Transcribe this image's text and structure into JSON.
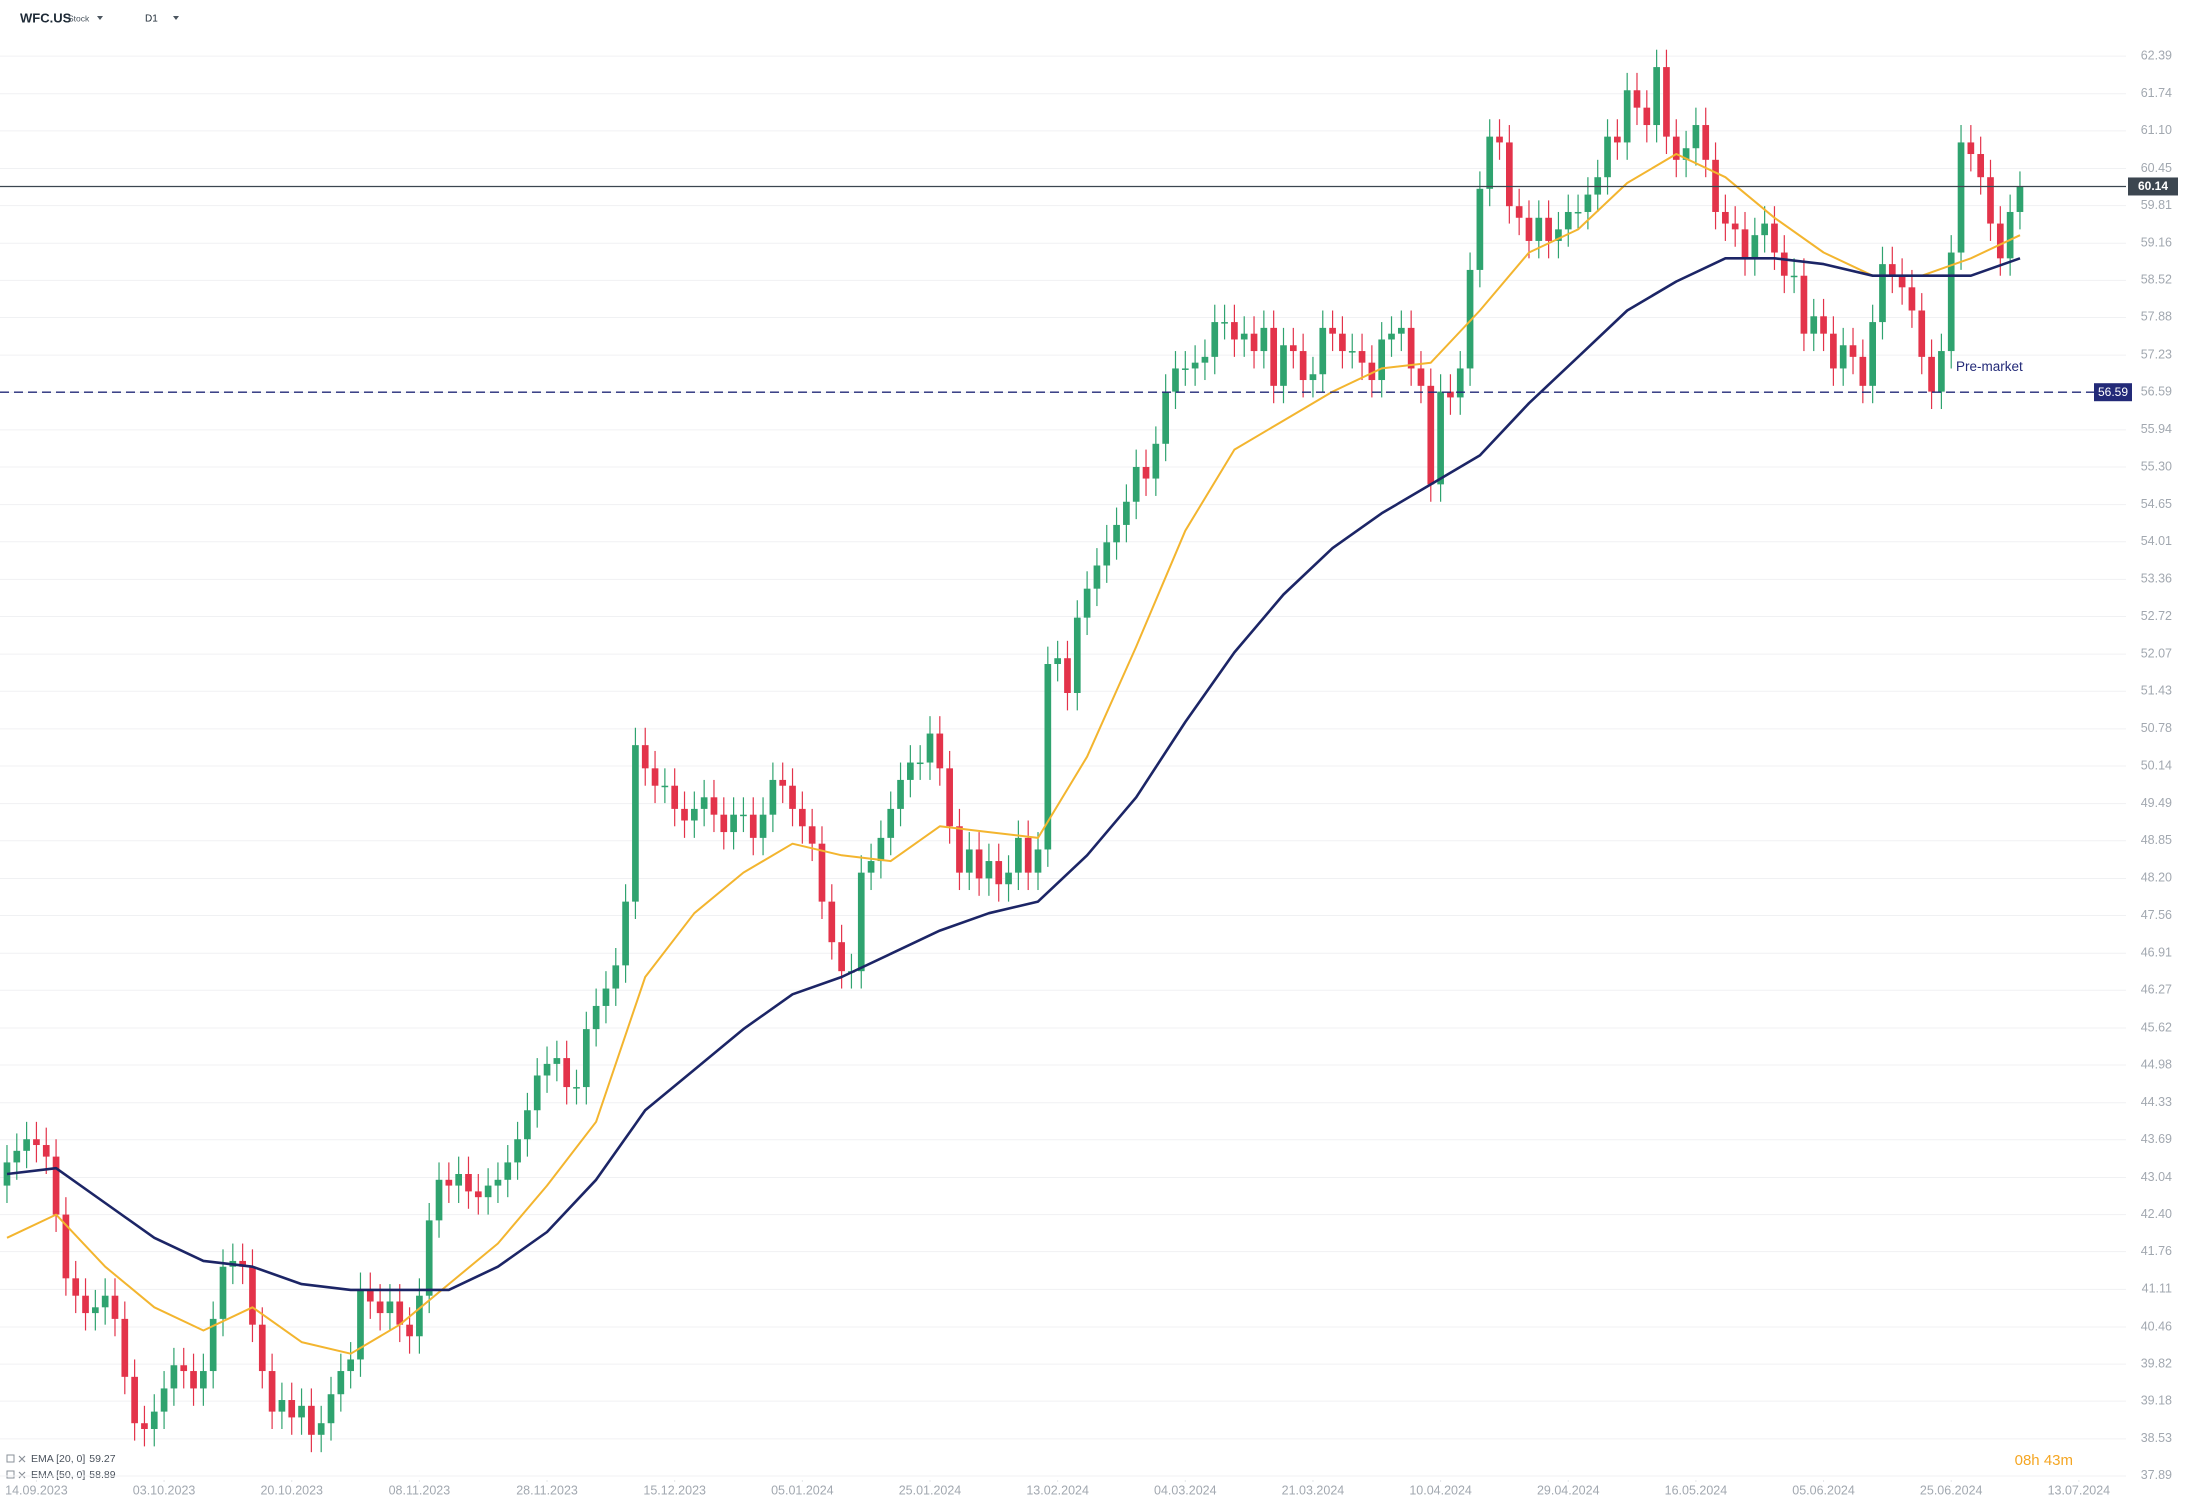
{
  "header": {
    "symbol": "WFC.US",
    "asset_type": "Stock",
    "interval": "D1"
  },
  "chart_data": {
    "type": "candlestick",
    "open": [
      42.9,
      43.3,
      43.5,
      43.7,
      43.6,
      43.4,
      42.4,
      41.3,
      41.0,
      40.7,
      40.8,
      41.0,
      40.6,
      39.6,
      38.8,
      38.7,
      39.0,
      39.4,
      39.8,
      39.7,
      39.4,
      39.7,
      40.6,
      41.5,
      41.6,
      41.5,
      40.5,
      39.7,
      39.0,
      39.2,
      38.9,
      39.1,
      38.6,
      38.8,
      39.3,
      39.7,
      39.9,
      41.1,
      40.9,
      40.7,
      40.9,
      40.5,
      40.3,
      41.0,
      42.3,
      43.0,
      42.9,
      43.1,
      42.8,
      42.7,
      42.9,
      43.0,
      43.3,
      43.7,
      44.2,
      44.8,
      45.0,
      45.1,
      44.6,
      44.6,
      45.6,
      46.0,
      46.3,
      46.7,
      47.8,
      50.5,
      50.1,
      49.8,
      49.8,
      49.4,
      49.2,
      49.4,
      49.6,
      49.3,
      49.0,
      49.3,
      49.3,
      48.9,
      49.3,
      49.9,
      49.8,
      49.4,
      49.1,
      48.8,
      47.8,
      47.1,
      46.6,
      46.6,
      48.3,
      48.5,
      48.9,
      49.4,
      49.9,
      50.2,
      50.2,
      50.7,
      50.1,
      49.1,
      48.3,
      48.7,
      48.2,
      48.5,
      48.1,
      48.3,
      48.9,
      48.3,
      48.7,
      51.9,
      52.0,
      51.4,
      52.7,
      53.2,
      53.6,
      54.0,
      54.3,
      54.7,
      55.3,
      55.1,
      55.7,
      56.6,
      57.0,
      57.0,
      57.1,
      57.2,
      57.8,
      57.8,
      57.5,
      57.6,
      57.3,
      57.7,
      56.7,
      57.4,
      57.3,
      56.8,
      56.9,
      57.7,
      57.6,
      57.3,
      57.3,
      57.1,
      56.8,
      57.5,
      57.6,
      57.7,
      57.0,
      56.7,
      55.0,
      56.6,
      56.5,
      57.0,
      58.7,
      60.1,
      61.0,
      60.9,
      59.8,
      59.6,
      59.2,
      59.6,
      59.2,
      59.4,
      59.7,
      59.7,
      60.0,
      60.3,
      61.0,
      60.9,
      61.8,
      61.5,
      61.2,
      62.2,
      61.0,
      60.6,
      60.8,
      61.2,
      60.6,
      59.7,
      59.5,
      59.4,
      58.9,
      59.3,
      59.5,
      59.0,
      58.6,
      58.6,
      57.6,
      57.9,
      57.6,
      57.0,
      57.4,
      57.2,
      56.7,
      57.8,
      58.8,
      58.6,
      58.4,
      58.0,
      57.2,
      56.6,
      57.3,
      59.0,
      60.9,
      60.7,
      60.3,
      59.5,
      58.9,
      59.7
    ],
    "high": [
      43.6,
      43.8,
      44.0,
      44.0,
      43.9,
      43.7,
      42.7,
      41.6,
      41.3,
      41.1,
      41.3,
      41.3,
      40.9,
      39.9,
      39.1,
      39.3,
      39.7,
      40.1,
      40.1,
      40.0,
      40.0,
      40.9,
      41.8,
      41.9,
      41.9,
      41.8,
      40.8,
      40.0,
      39.5,
      39.5,
      39.4,
      39.4,
      39.1,
      39.6,
      40.0,
      40.2,
      41.4,
      41.4,
      41.2,
      41.2,
      41.2,
      40.8,
      41.3,
      42.6,
      43.3,
      43.3,
      43.4,
      43.4,
      43.1,
      43.2,
      43.3,
      43.6,
      44.0,
      44.5,
      45.1,
      45.3,
      45.4,
      45.4,
      44.9,
      45.9,
      46.3,
      46.6,
      47.0,
      48.1,
      50.8,
      50.8,
      50.4,
      50.1,
      50.1,
      49.7,
      49.7,
      49.9,
      49.9,
      49.6,
      49.6,
      49.6,
      49.6,
      49.6,
      50.2,
      50.2,
      50.1,
      49.7,
      49.4,
      49.1,
      48.1,
      47.4,
      46.9,
      48.6,
      48.8,
      49.2,
      49.7,
      50.2,
      50.5,
      50.5,
      51.0,
      51.0,
      50.4,
      49.4,
      49.0,
      49.0,
      48.8,
      48.8,
      48.6,
      49.2,
      49.2,
      49.0,
      52.2,
      52.3,
      52.3,
      53.0,
      53.5,
      53.9,
      54.3,
      54.6,
      55.0,
      55.6,
      55.6,
      56.0,
      56.9,
      57.3,
      57.3,
      57.4,
      57.5,
      58.1,
      58.1,
      58.1,
      57.9,
      57.9,
      58.0,
      58.0,
      57.7,
      57.7,
      57.6,
      57.2,
      58.0,
      58.0,
      57.9,
      57.6,
      57.6,
      57.4,
      57.8,
      57.9,
      58.0,
      58.0,
      57.3,
      57.0,
      56.9,
      56.9,
      57.3,
      59.0,
      60.4,
      61.3,
      61.3,
      61.2,
      60.1,
      59.9,
      59.9,
      59.9,
      59.7,
      60.0,
      60.0,
      60.3,
      60.6,
      61.3,
      61.3,
      62.1,
      62.1,
      61.8,
      62.5,
      62.5,
      61.3,
      61.1,
      61.5,
      61.5,
      60.9,
      60.0,
      59.8,
      59.7,
      59.6,
      59.8,
      59.8,
      59.3,
      58.9,
      58.9,
      58.2,
      58.2,
      57.9,
      57.7,
      57.7,
      57.5,
      58.1,
      59.1,
      59.1,
      58.9,
      58.7,
      58.3,
      57.5,
      57.6,
      59.3,
      61.2,
      61.2,
      61.0,
      60.6,
      59.8,
      60.0,
      60.4
    ],
    "low": [
      42.6,
      43.0,
      43.2,
      43.3,
      43.1,
      42.1,
      41.0,
      40.7,
      40.4,
      40.4,
      40.5,
      40.3,
      39.3,
      38.5,
      38.4,
      38.4,
      38.7,
      39.1,
      39.4,
      39.1,
      39.1,
      39.4,
      40.3,
      41.2,
      41.2,
      40.2,
      39.4,
      38.7,
      38.7,
      38.6,
      38.6,
      38.3,
      38.3,
      38.5,
      39.0,
      39.4,
      39.6,
      40.6,
      40.4,
      40.4,
      40.2,
      40.0,
      40.0,
      40.7,
      42.0,
      42.6,
      42.6,
      42.5,
      42.4,
      42.4,
      42.6,
      42.7,
      43.0,
      43.4,
      43.9,
      44.5,
      44.7,
      44.3,
      44.3,
      44.3,
      45.3,
      45.7,
      46.0,
      46.4,
      47.5,
      49.8,
      49.5,
      49.5,
      49.1,
      48.9,
      48.9,
      49.1,
      49.0,
      48.7,
      48.7,
      49.0,
      48.6,
      48.6,
      49.0,
      49.5,
      49.1,
      48.8,
      48.5,
      47.5,
      46.8,
      46.3,
      46.3,
      46.3,
      48.0,
      48.2,
      48.6,
      49.1,
      49.6,
      49.9,
      49.9,
      49.8,
      48.8,
      48.0,
      48.0,
      47.9,
      47.9,
      47.8,
      47.8,
      48.0,
      48.0,
      48.0,
      48.4,
      51.6,
      51.1,
      51.1,
      52.4,
      52.9,
      53.3,
      53.7,
      54.0,
      54.4,
      54.8,
      54.8,
      55.4,
      56.3,
      56.7,
      56.7,
      56.8,
      56.9,
      57.5,
      57.2,
      57.2,
      57.0,
      57.0,
      56.4,
      56.4,
      57.0,
      56.5,
      56.5,
      56.6,
      57.3,
      57.0,
      57.0,
      56.8,
      56.5,
      56.5,
      57.2,
      57.3,
      56.7,
      56.4,
      54.7,
      54.7,
      56.2,
      56.2,
      56.7,
      58.4,
      59.8,
      60.6,
      59.5,
      59.3,
      58.9,
      58.9,
      58.9,
      58.9,
      59.1,
      59.4,
      59.4,
      59.7,
      60.0,
      60.6,
      60.6,
      61.2,
      60.9,
      60.9,
      60.7,
      60.3,
      60.3,
      60.5,
      60.3,
      59.4,
      59.2,
      59.1,
      58.6,
      58.6,
      59.0,
      58.7,
      58.3,
      58.3,
      57.3,
      57.3,
      57.3,
      56.7,
      56.7,
      56.9,
      56.4,
      56.4,
      57.5,
      58.3,
      58.1,
      57.7,
      56.9,
      56.3,
      56.3,
      57.0,
      58.7,
      60.4,
      60.0,
      59.2,
      58.6,
      58.6,
      59.4
    ],
    "close": [
      43.3,
      43.5,
      43.7,
      43.6,
      43.4,
      42.4,
      41.3,
      41.0,
      40.7,
      40.8,
      41.0,
      40.6,
      39.6,
      38.8,
      38.7,
      39.0,
      39.4,
      39.8,
      39.7,
      39.4,
      39.7,
      40.6,
      41.5,
      41.6,
      41.5,
      40.5,
      39.7,
      39.0,
      39.2,
      38.9,
      39.1,
      38.6,
      38.8,
      39.3,
      39.7,
      39.9,
      41.1,
      40.9,
      40.7,
      40.9,
      40.5,
      40.3,
      41.0,
      42.3,
      43.0,
      42.9,
      43.1,
      42.8,
      42.7,
      42.9,
      43.0,
      43.3,
      43.7,
      44.2,
      44.8,
      45.0,
      45.1,
      44.6,
      44.6,
      45.6,
      46.0,
      46.3,
      46.7,
      47.8,
      50.5,
      50.1,
      49.8,
      49.8,
      49.4,
      49.2,
      49.4,
      49.6,
      49.3,
      49.0,
      49.3,
      49.3,
      48.9,
      49.3,
      49.9,
      49.8,
      49.4,
      49.1,
      48.8,
      47.8,
      47.1,
      46.6,
      46.6,
      48.3,
      48.5,
      48.9,
      49.4,
      49.9,
      50.2,
      50.2,
      50.7,
      50.1,
      49.1,
      48.3,
      48.7,
      48.2,
      48.5,
      48.1,
      48.3,
      48.9,
      48.3,
      48.7,
      51.9,
      52.0,
      51.4,
      52.7,
      53.2,
      53.6,
      54.0,
      54.3,
      54.7,
      55.3,
      55.1,
      55.7,
      56.6,
      57.0,
      57.0,
      57.1,
      57.2,
      57.8,
      57.8,
      57.5,
      57.6,
      57.3,
      57.7,
      56.7,
      57.4,
      57.3,
      56.8,
      56.9,
      57.7,
      57.6,
      57.3,
      57.3,
      57.1,
      56.8,
      57.5,
      57.6,
      57.7,
      57.0,
      56.7,
      55.0,
      56.6,
      56.5,
      57.0,
      58.7,
      60.1,
      61.0,
      60.9,
      59.8,
      59.6,
      59.2,
      59.6,
      59.2,
      59.4,
      59.7,
      59.7,
      60.0,
      60.3,
      61.0,
      60.9,
      61.8,
      61.5,
      61.2,
      62.2,
      61.0,
      60.6,
      60.8,
      61.2,
      60.6,
      59.7,
      59.5,
      59.4,
      58.9,
      59.3,
      59.5,
      59.0,
      58.6,
      58.6,
      57.6,
      57.9,
      57.6,
      57.0,
      57.4,
      57.2,
      56.7,
      57.8,
      58.8,
      58.6,
      58.4,
      58.0,
      57.2,
      56.6,
      57.3,
      59.0,
      60.9,
      60.7,
      60.3,
      59.5,
      58.9,
      59.7,
      60.14
    ],
    "up_color": "#2fa36f",
    "down_color": "#e3334a",
    "series": [
      {
        "name": "EMA [20, 0]",
        "last_value": 59.27,
        "color": "#f3b52f",
        "x": [
          0,
          5,
          10,
          15,
          20,
          25,
          30,
          35,
          40,
          45,
          50,
          55,
          60,
          65,
          70,
          75,
          80,
          85,
          90,
          95,
          100,
          105,
          110,
          115,
          120,
          125,
          130,
          135,
          140,
          145,
          150,
          155,
          160,
          165,
          170,
          175,
          180,
          185,
          190,
          195,
          200,
          205
        ],
        "values": [
          42.0,
          42.4,
          41.5,
          40.8,
          40.4,
          40.8,
          40.2,
          40.0,
          40.5,
          41.2,
          41.9,
          42.9,
          44.0,
          46.5,
          47.6,
          48.3,
          48.8,
          48.6,
          48.5,
          49.1,
          49.0,
          48.9,
          50.3,
          52.2,
          54.2,
          55.6,
          56.1,
          56.6,
          57.0,
          57.1,
          58.0,
          59.0,
          59.4,
          60.2,
          60.7,
          60.3,
          59.6,
          59.0,
          58.6,
          58.6,
          58.9,
          59.3
        ]
      },
      {
        "name": "EMA [50, 0]",
        "last_value": 58.89,
        "color": "#1c2566",
        "x": [
          0,
          5,
          10,
          15,
          20,
          25,
          30,
          35,
          40,
          45,
          50,
          55,
          60,
          65,
          70,
          75,
          80,
          85,
          90,
          95,
          100,
          105,
          110,
          115,
          120,
          125,
          130,
          135,
          140,
          145,
          150,
          155,
          160,
          165,
          170,
          175,
          180,
          185,
          190,
          195,
          200,
          205
        ],
        "values": [
          43.1,
          43.2,
          42.6,
          42.0,
          41.6,
          41.5,
          41.2,
          41.1,
          41.1,
          41.1,
          41.5,
          42.1,
          43.0,
          44.2,
          44.9,
          45.6,
          46.2,
          46.5,
          46.9,
          47.3,
          47.6,
          47.8,
          48.6,
          49.6,
          50.9,
          52.1,
          53.1,
          53.9,
          54.5,
          55.0,
          55.5,
          56.4,
          57.2,
          58.0,
          58.5,
          58.9,
          58.9,
          58.8,
          58.6,
          58.6,
          58.6,
          58.9
        ]
      }
    ],
    "xlim": [
      -0.71,
      215.8
    ],
    "xticks": [
      {
        "value": 3,
        "label": "14.09.2023"
      },
      {
        "value": 16,
        "label": "03.10.2023"
      },
      {
        "value": 29,
        "label": "20.10.2023"
      },
      {
        "value": 42,
        "label": "08.11.2023"
      },
      {
        "value": 55,
        "label": "28.11.2023"
      },
      {
        "value": 68,
        "label": "15.12.2023"
      },
      {
        "value": 81,
        "label": "05.01.2024"
      },
      {
        "value": 94,
        "label": "25.01.2024"
      },
      {
        "value": 107,
        "label": "13.02.2024"
      },
      {
        "value": 120,
        "label": "04.03.2024"
      },
      {
        "value": 133,
        "label": "21.03.2024"
      },
      {
        "value": 146,
        "label": "10.04.2024"
      },
      {
        "value": 159,
        "label": "29.04.2024"
      },
      {
        "value": 172,
        "label": "16.05.2024"
      },
      {
        "value": 185,
        "label": "05.06.2024"
      },
      {
        "value": 198,
        "label": "25.06.2024"
      },
      {
        "value": 211,
        "label": "13.07.2024"
      }
    ],
    "ylim": [
      37.82,
      62.84
    ],
    "yticks": [
      62.39,
      61.74,
      {
        "value": 61.1,
        "label": "61.10"
      },
      60.45,
      59.81,
      59.16,
      58.52,
      57.88,
      57.23,
      56.59,
      55.94,
      {
        "value": 55.3,
        "label": "55.30"
      },
      54.65,
      54.01,
      53.36,
      52.72,
      52.07,
      51.43,
      50.78,
      50.14,
      49.49,
      48.85,
      {
        "value": 48.2,
        "label": "48.20"
      },
      47.56,
      46.91,
      46.27,
      45.62,
      44.98,
      44.33,
      43.69,
      43.04,
      {
        "value": 42.4,
        "label": "42.40"
      },
      41.76,
      41.11,
      40.46,
      39.82,
      39.18,
      38.53,
      37.89
    ],
    "grid": true,
    "price_lines": [
      {
        "value": 60.14,
        "color": "#3c4650",
        "dashed": false
      },
      {
        "name": "Pre-market",
        "value": 56.59,
        "color": "#232a78",
        "dashed": true
      }
    ]
  },
  "countdown": "08h 43m"
}
